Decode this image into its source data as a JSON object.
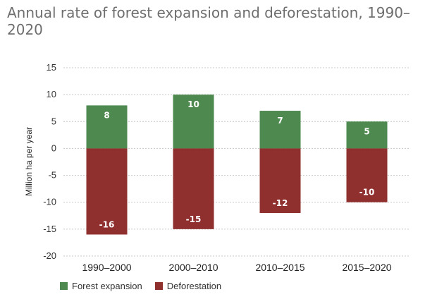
{
  "chart_data": {
    "type": "bar",
    "title": "Annual rate of forest expansion and deforestation, 1990–2020",
    "ylabel": "Million ha per year",
    "xlabel": "",
    "categories": [
      "1990–2000",
      "2000–2010",
      "2010–2015",
      "2015–2020"
    ],
    "series": [
      {
        "name": "Forest expansion",
        "color": "#4e8a4f",
        "values": [
          8,
          10,
          7,
          5
        ],
        "labels": [
          "8",
          "10",
          "7",
          "5"
        ]
      },
      {
        "name": "Deforestation",
        "color": "#8f2f2e",
        "values": [
          -16,
          -15,
          -12,
          -10
        ],
        "labels": [
          "-16",
          "-15",
          "-12",
          "-10"
        ]
      }
    ],
    "ylim": [
      -20,
      15
    ],
    "yticks": [
      15,
      10,
      5,
      0,
      -5,
      -10,
      -15,
      -20
    ],
    "grid": true,
    "legend_position": "bottom-left"
  }
}
